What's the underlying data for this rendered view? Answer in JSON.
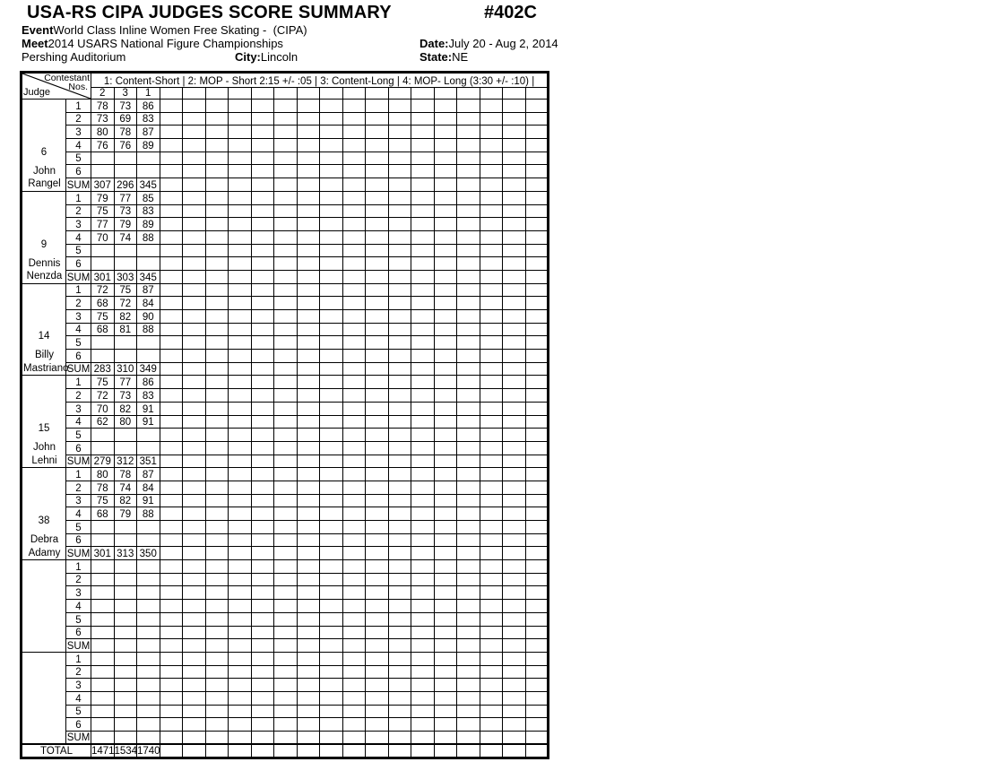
{
  "header": {
    "title": "USA-RS CIPA JUDGES SCORE SUMMARY",
    "form_number": "#402C",
    "event_label": "Event",
    "event_value": "World Class Inline Women Free Skating -  (CIPA)",
    "meet_label": "Meet",
    "meet_value": "2014 USARS National Figure Championships",
    "date_label": "Date:",
    "date_value": "July 20 - Aug 2, 2014",
    "venue": "Pershing Auditorium",
    "city_label": "City:",
    "city_value": "Lincoln",
    "state_label": "State:",
    "state_value": "NE"
  },
  "table": {
    "corner": {
      "top_label": "Contestant",
      "nos_label": "Nos.",
      "judge_label": "Judge"
    },
    "legend": "1: Content-Short |  2: MOP - Short 2:15 +/- :05 |  3: Content-Long |  4: MOP- Long (3:30 +/- :10) |",
    "score_columns": 20,
    "group_size": 4,
    "contestant_nos": [
      "2",
      "3",
      "1"
    ],
    "row_labels": [
      "1",
      "2",
      "3",
      "4",
      "5",
      "6",
      "SUM"
    ],
    "total_label": "TOTAL",
    "judges": [
      {
        "number": "6",
        "name_lines": [
          "John",
          "Rangel"
        ],
        "rows": [
          [
            "78",
            "73",
            "86"
          ],
          [
            "73",
            "69",
            "83"
          ],
          [
            "80",
            "78",
            "87"
          ],
          [
            "76",
            "76",
            "89"
          ],
          [],
          []
        ],
        "sum": [
          "307",
          "296",
          "345"
        ]
      },
      {
        "number": "9",
        "name_lines": [
          "Dennis",
          "Nenzda"
        ],
        "rows": [
          [
            "79",
            "77",
            "85"
          ],
          [
            "75",
            "73",
            "83"
          ],
          [
            "77",
            "79",
            "89"
          ],
          [
            "70",
            "74",
            "88"
          ],
          [],
          []
        ],
        "sum": [
          "301",
          "303",
          "345"
        ]
      },
      {
        "number": "14",
        "name_lines": [
          "Billy",
          "Mastriano"
        ],
        "rows": [
          [
            "72",
            "75",
            "87"
          ],
          [
            "68",
            "72",
            "84"
          ],
          [
            "75",
            "82",
            "90"
          ],
          [
            "68",
            "81",
            "88"
          ],
          [],
          []
        ],
        "sum": [
          "283",
          "310",
          "349"
        ]
      },
      {
        "number": "15",
        "name_lines": [
          "John",
          "Lehni"
        ],
        "rows": [
          [
            "75",
            "77",
            "86"
          ],
          [
            "72",
            "73",
            "83"
          ],
          [
            "70",
            "82",
            "91"
          ],
          [
            "62",
            "80",
            "91"
          ],
          [],
          []
        ],
        "sum": [
          "279",
          "312",
          "351"
        ]
      },
      {
        "number": "38",
        "name_lines": [
          "Debra",
          "Adamy"
        ],
        "rows": [
          [
            "80",
            "78",
            "87"
          ],
          [
            "78",
            "74",
            "84"
          ],
          [
            "75",
            "82",
            "91"
          ],
          [
            "68",
            "79",
            "88"
          ],
          [],
          []
        ],
        "sum": [
          "301",
          "313",
          "350"
        ]
      },
      {
        "number": "",
        "name_lines": [],
        "rows": [
          [],
          [],
          [],
          [],
          [],
          []
        ],
        "sum": []
      },
      {
        "number": "",
        "name_lines": [],
        "rows": [
          [],
          [],
          [],
          [],
          [],
          []
        ],
        "sum": []
      }
    ],
    "totals": [
      "1471",
      "1534",
      "1740"
    ]
  }
}
